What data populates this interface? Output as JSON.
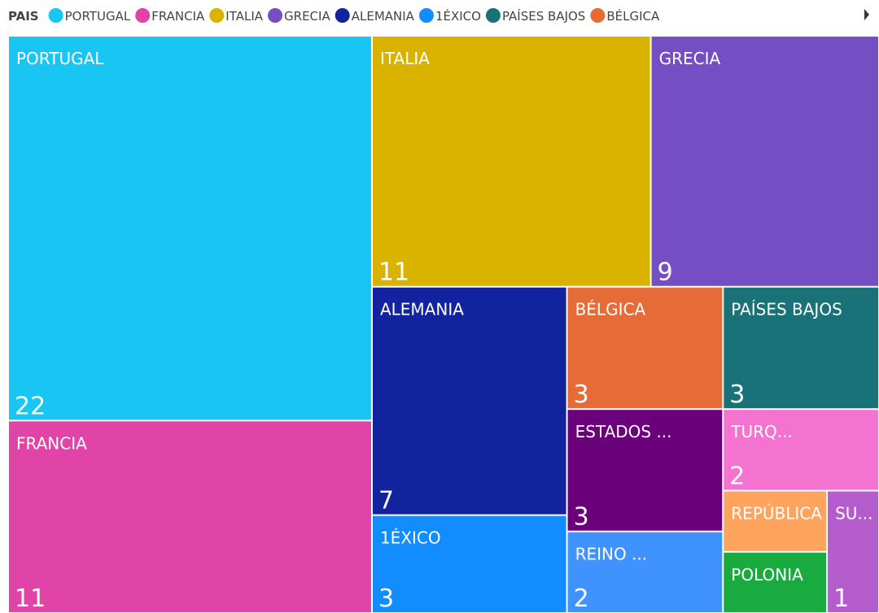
{
  "chart_data": {
    "type": "treemap",
    "legend_title": "PAIS",
    "legend": [
      {
        "name": "PORTUGAL",
        "color": "#18c5f3"
      },
      {
        "name": "FRANCIA",
        "color": "#e044a7"
      },
      {
        "name": "ITALIA",
        "color": "#d9b300"
      },
      {
        "name": "GRECIA",
        "color": "#744ec2"
      },
      {
        "name": "ALEMANIA",
        "color": "#12239e"
      },
      {
        "name": "1ÉXICO",
        "color": "#118dff"
      },
      {
        "name": "PAÍSES BAJOS",
        "color": "#197278"
      },
      {
        "name": "BÉLGICA",
        "color": "#e66c37"
      }
    ],
    "categories": [
      "PORTUGAL",
      "FRANCIA",
      "ITALIA",
      "GRECIA",
      "ALEMANIA",
      "1ÉXICO",
      "BÉLGICA",
      "PAÍSES BAJOS",
      "ESTADOS ...",
      "REINO ...",
      "TURQ...",
      "REPÚBLICA ...",
      "POLONIA",
      "SU..."
    ],
    "values": [
      22,
      11,
      11,
      9,
      7,
      3,
      3,
      3,
      3,
      2,
      2,
      1,
      1,
      1
    ],
    "colors": [
      "#18c5f3",
      "#e044a7",
      "#d9b300",
      "#744ec2",
      "#12239e",
      "#118dff",
      "#e66c37",
      "#197278",
      "#6b007b",
      "#4092ff",
      "#f472d0",
      "#fea45e",
      "#1aab40",
      "#b45ccc"
    ]
  }
}
